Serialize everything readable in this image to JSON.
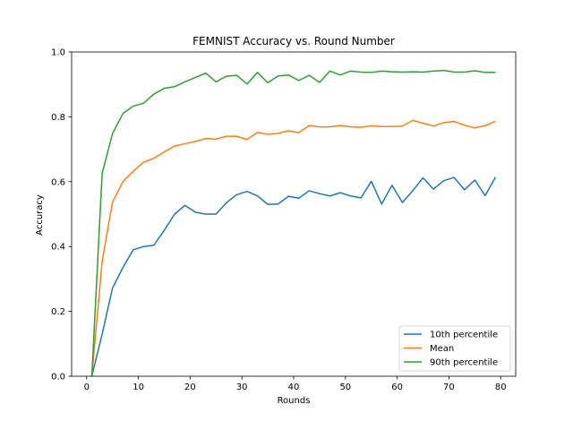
{
  "chart_data": {
    "type": "line",
    "title": "FEMNIST Accuracy vs. Round Number",
    "xlabel": "Rounds",
    "ylabel": "Accuracy",
    "xlim": [
      -2.9,
      82.9
    ],
    "ylim": [
      0.0,
      1.0
    ],
    "xticks": [
      0,
      10,
      20,
      30,
      40,
      50,
      60,
      70,
      80
    ],
    "yticks": [
      0.0,
      0.2,
      0.4,
      0.6,
      0.8,
      1.0
    ],
    "xtick_labels": [
      "0",
      "10",
      "20",
      "30",
      "40",
      "50",
      "60",
      "70",
      "80"
    ],
    "ytick_labels": [
      "0.0",
      "0.2",
      "0.4",
      "0.6",
      "0.8",
      "1.0"
    ],
    "grid": false,
    "legend_position": "lower-right",
    "x": [
      1,
      3,
      5,
      7,
      9,
      11,
      13,
      15,
      17,
      19,
      21,
      23,
      25,
      27,
      29,
      31,
      33,
      35,
      37,
      39,
      41,
      43,
      45,
      47,
      49,
      51,
      53,
      55,
      57,
      59,
      61,
      63,
      65,
      67,
      69,
      71,
      73,
      75,
      77,
      79
    ],
    "series": [
      {
        "name": "10th percentile",
        "color": "#1f77b4",
        "values": [
          0.0,
          0.13,
          0.272,
          0.335,
          0.39,
          0.4,
          0.404,
          0.45,
          0.5,
          0.527,
          0.506,
          0.5,
          0.5,
          0.535,
          0.56,
          0.57,
          0.556,
          0.53,
          0.531,
          0.555,
          0.549,
          0.572,
          0.563,
          0.556,
          0.566,
          0.556,
          0.55,
          0.601,
          0.531,
          0.589,
          0.536,
          0.572,
          0.612,
          0.577,
          0.603,
          0.613,
          0.575,
          0.605,
          0.557,
          0.614
        ]
      },
      {
        "name": "Mean",
        "color": "#ff7f0e",
        "values": [
          0.0,
          0.355,
          0.537,
          0.6,
          0.632,
          0.66,
          0.672,
          0.692,
          0.71,
          0.717,
          0.724,
          0.733,
          0.731,
          0.74,
          0.74,
          0.73,
          0.752,
          0.746,
          0.749,
          0.757,
          0.751,
          0.773,
          0.769,
          0.769,
          0.773,
          0.769,
          0.768,
          0.772,
          0.77,
          0.77,
          0.771,
          0.789,
          0.78,
          0.772,
          0.782,
          0.786,
          0.774,
          0.766,
          0.773,
          0.786
        ]
      },
      {
        "name": "90th percentile",
        "color": "#2ca02c",
        "values": [
          0.0,
          0.626,
          0.748,
          0.81,
          0.833,
          0.842,
          0.87,
          0.888,
          0.893,
          0.908,
          0.921,
          0.935,
          0.908,
          0.925,
          0.928,
          0.901,
          0.937,
          0.905,
          0.926,
          0.929,
          0.912,
          0.928,
          0.906,
          0.941,
          0.929,
          0.941,
          0.938,
          0.937,
          0.941,
          0.939,
          0.938,
          0.939,
          0.938,
          0.941,
          0.943,
          0.938,
          0.938,
          0.942,
          0.937,
          0.937
        ]
      }
    ]
  }
}
